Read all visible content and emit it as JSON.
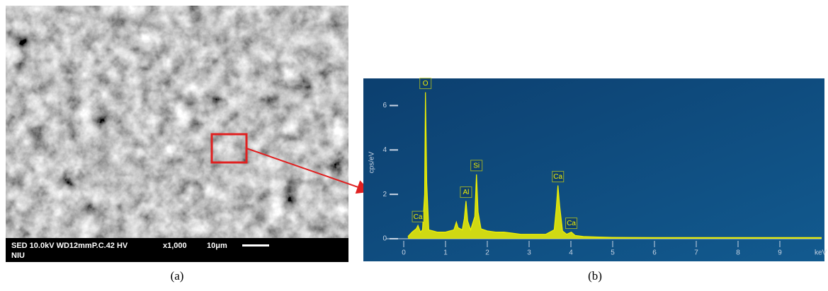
{
  "sem_image": {
    "info_line": "SED 10.0kV WD12mmP.C.42 HV",
    "magnification": "x1,000",
    "scale_bar": "10μm",
    "operator": "NIU"
  },
  "captions": [
    "(a)",
    "(b)"
  ],
  "chart_data": {
    "type": "area",
    "x_label": "keV",
    "y_label": "cps/eV",
    "color": "#f2f200",
    "x": [
      0.1,
      0.2,
      0.3,
      0.34,
      0.4,
      0.45,
      0.5,
      0.52,
      0.55,
      0.6,
      0.7,
      0.8,
      0.9,
      1.0,
      1.1,
      1.2,
      1.26,
      1.3,
      1.4,
      1.45,
      1.49,
      1.53,
      1.6,
      1.7,
      1.74,
      1.78,
      1.85,
      2.0,
      2.2,
      2.4,
      2.6,
      2.8,
      3.0,
      3.2,
      3.4,
      3.6,
      3.65,
      3.69,
      3.73,
      3.8,
      3.9,
      4.01,
      4.1,
      4.3,
      4.6,
      5.0,
      6.0,
      7.0,
      8.0,
      9.0,
      10.0
    ],
    "values": [
      0.1,
      0.3,
      0.45,
      0.6,
      0.3,
      0.4,
      2.0,
      6.6,
      2.5,
      0.4,
      0.35,
      0.3,
      0.3,
      0.3,
      0.35,
      0.4,
      0.75,
      0.5,
      0.4,
      0.9,
      1.7,
      0.8,
      0.4,
      1.0,
      2.9,
      1.2,
      0.45,
      0.35,
      0.3,
      0.3,
      0.25,
      0.2,
      0.2,
      0.2,
      0.2,
      0.4,
      1.4,
      2.4,
      1.5,
      0.35,
      0.2,
      0.3,
      0.15,
      0.1,
      0.08,
      0.06,
      0.05,
      0.05,
      0.05,
      0.05,
      0.05
    ],
    "peaks": [
      {
        "label": "Ca",
        "x": 0.34,
        "value": 0.6
      },
      {
        "label": "O",
        "x": 0.52,
        "value": 6.6
      },
      {
        "label": "Al",
        "x": 1.49,
        "value": 1.7
      },
      {
        "label": "Si",
        "x": 1.74,
        "value": 2.9
      },
      {
        "label": "Ca",
        "x": 3.69,
        "value": 2.4
      },
      {
        "label": "Ca",
        "x": 4.01,
        "value": 0.3
      }
    ],
    "xlim": [
      0,
      10
    ],
    "xticks": [
      0,
      1,
      2,
      3,
      4,
      5,
      6,
      7,
      8,
      9
    ],
    "ylim": [
      0,
      7
    ],
    "yticks": [
      0,
      2,
      4,
      6
    ]
  }
}
